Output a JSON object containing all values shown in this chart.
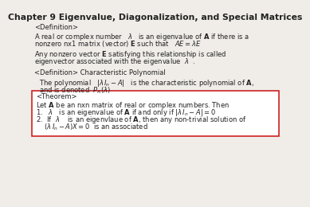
{
  "title": "Chapter 9 Eigenvalue, Diagonalization, and Special Matrices",
  "bg_color": "#f0ede8",
  "box_bg": "#ffffff",
  "box_edge": "#cc2222",
  "title_fontsize": 7.8,
  "body_fontsize": 6.0,
  "text_color": "#222222"
}
